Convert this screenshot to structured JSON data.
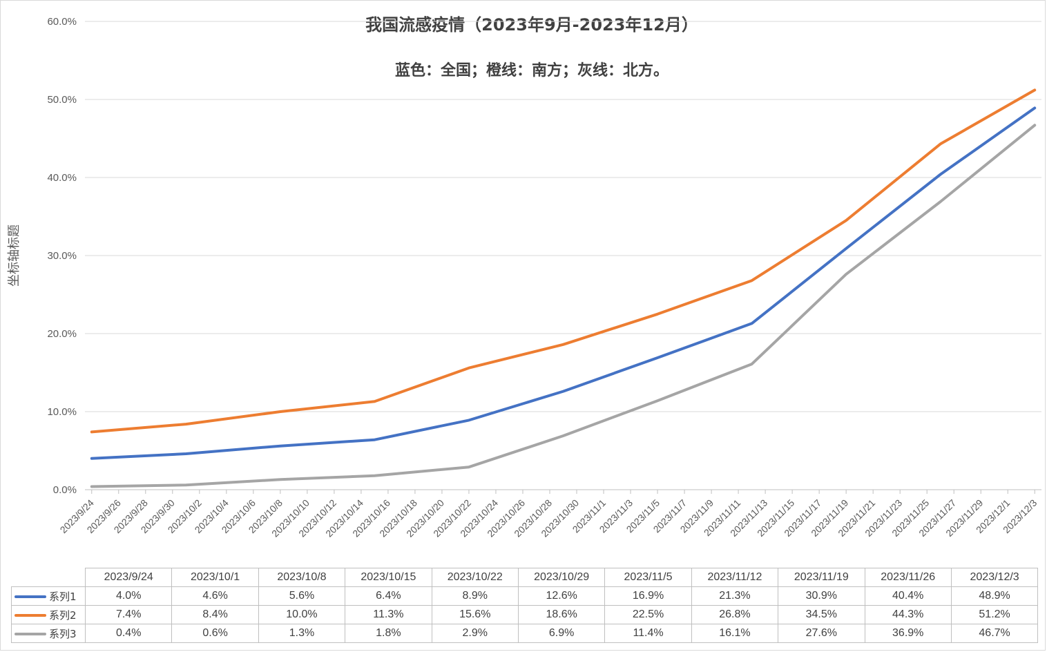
{
  "chart_data": {
    "type": "line",
    "title": "我国流感疫情（2023年9月-2023年12月）",
    "subtitle": "蓝色：全国；橙线：南方；灰线：北方。",
    "ylabel": "坐标轴标题",
    "ylim": [
      0,
      60
    ],
    "y_ticks": [
      "0.0%",
      "10.0%",
      "20.0%",
      "30.0%",
      "40.0%",
      "50.0%",
      "60.0%"
    ],
    "y_tick_values": [
      0,
      10,
      20,
      30,
      40,
      50,
      60
    ],
    "grid": true,
    "x_tick_labels": [
      "2023/9/24",
      "2023/9/26",
      "2023/9/28",
      "2023/9/30",
      "2023/10/2",
      "2023/10/4",
      "2023/10/6",
      "2023/10/8",
      "2023/10/10",
      "2023/10/12",
      "2023/10/14",
      "2023/10/16",
      "2023/10/18",
      "2023/10/20",
      "2023/10/22",
      "2023/10/24",
      "2023/10/26",
      "2023/10/28",
      "2023/10/30",
      "2023/11/1",
      "2023/11/3",
      "2023/11/5",
      "2023/11/7",
      "2023/11/9",
      "2023/11/11",
      "2023/11/13",
      "2023/11/15",
      "2023/11/17",
      "2023/11/19",
      "2023/11/21",
      "2023/11/23",
      "2023/11/25",
      "2023/11/27",
      "2023/11/29",
      "2023/12/1",
      "2023/12/3"
    ],
    "categories": [
      "2023/9/24",
      "2023/10/1",
      "2023/10/8",
      "2023/10/15",
      "2023/10/22",
      "2023/10/29",
      "2023/11/5",
      "2023/11/12",
      "2023/11/19",
      "2023/11/26",
      "2023/12/3"
    ],
    "series": [
      {
        "name": "系列1",
        "color": "#4472c4",
        "values": [
          4.0,
          4.6,
          5.6,
          6.4,
          8.9,
          12.6,
          16.9,
          21.3,
          30.9,
          40.4,
          48.9
        ],
        "labels": [
          "4.0%",
          "4.6%",
          "5.6%",
          "6.4%",
          "8.9%",
          "12.6%",
          "16.9%",
          "21.3%",
          "30.9%",
          "40.4%",
          "48.9%"
        ]
      },
      {
        "name": "系列2",
        "color": "#ed7d31",
        "values": [
          7.4,
          8.4,
          10.0,
          11.3,
          15.6,
          18.6,
          22.5,
          26.8,
          34.5,
          44.3,
          51.2
        ],
        "labels": [
          "7.4%",
          "8.4%",
          "10.0%",
          "11.3%",
          "15.6%",
          "18.6%",
          "22.5%",
          "26.8%",
          "34.5%",
          "44.3%",
          "51.2%"
        ]
      },
      {
        "name": "系列3",
        "color": "#a5a5a5",
        "values": [
          0.4,
          0.6,
          1.3,
          1.8,
          2.9,
          6.9,
          11.4,
          16.1,
          27.6,
          36.9,
          46.7
        ],
        "labels": [
          "0.4%",
          "0.6%",
          "1.3%",
          "1.8%",
          "2.9%",
          "6.9%",
          "11.4%",
          "16.1%",
          "27.6%",
          "36.9%",
          "46.7%"
        ]
      }
    ],
    "data_table": true
  }
}
